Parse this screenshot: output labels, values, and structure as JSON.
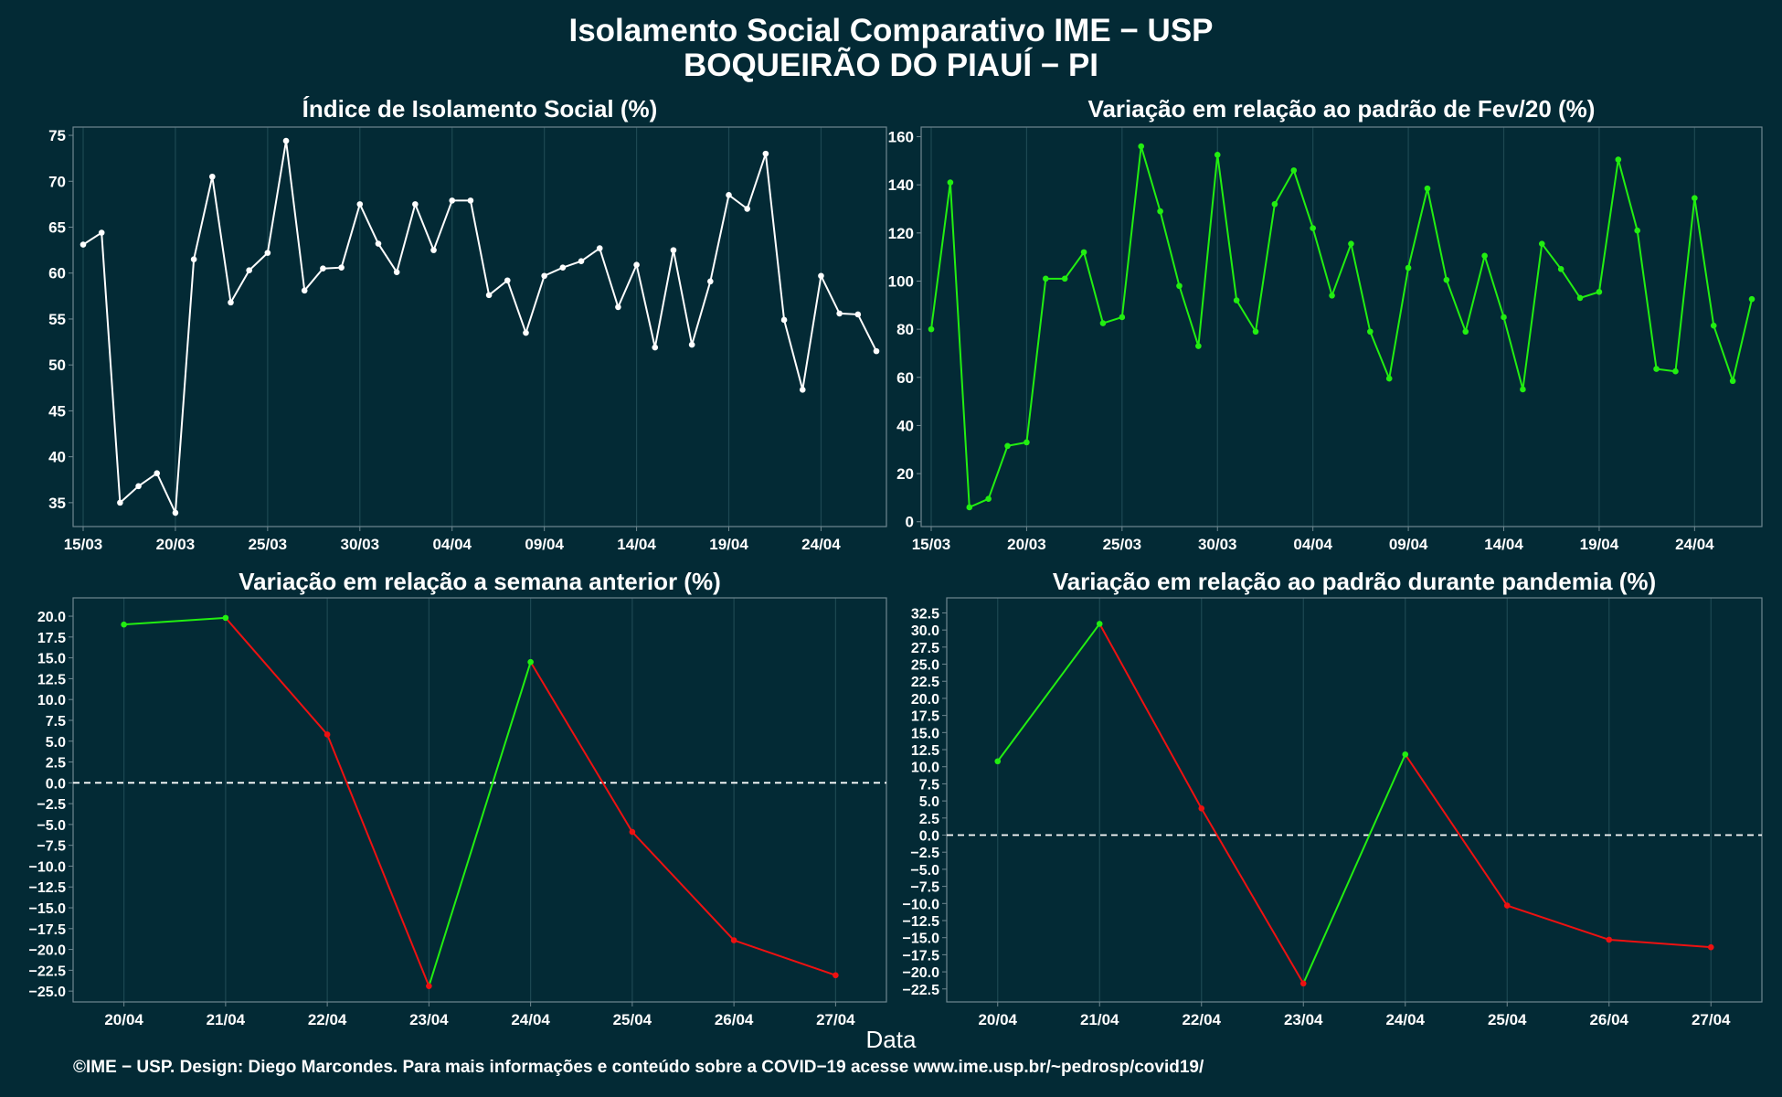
{
  "header": {
    "title": "Isolamento Social Comparativo IME − USP",
    "subtitle": "BOQUEIRÃO DO PIAUÍ − PI"
  },
  "xlabel": "Data",
  "footer": "©IME − USP. Design: Diego Marcondes. Para mais informações e conteúdo sobre a COVID−19 acesse www.ime.usp.br/~pedrosp/covid19/",
  "colors": {
    "background": "#032a35",
    "panel_border": "#6f8790",
    "grid": "#1d4852",
    "white_series": "#ffffff",
    "positive": "#22ee11",
    "negative": "#ee1111"
  },
  "chart_data": [
    {
      "type": "line",
      "title": "Índice de Isolamento Social (%)",
      "x_tick_labels": [
        "15/03",
        "20/03",
        "25/03",
        "30/03",
        "04/04",
        "09/04",
        "14/04",
        "19/04",
        "24/04"
      ],
      "x": [
        "15/03",
        "16/03",
        "17/03",
        "18/03",
        "19/03",
        "20/03",
        "21/03",
        "22/03",
        "23/03",
        "24/03",
        "25/03",
        "26/03",
        "27/03",
        "28/03",
        "29/03",
        "30/03",
        "31/03",
        "01/04",
        "02/04",
        "03/04",
        "04/04",
        "05/04",
        "06/04",
        "07/04",
        "08/04",
        "09/04",
        "10/04",
        "11/04",
        "12/04",
        "13/04",
        "14/04",
        "15/04",
        "16/04",
        "17/04",
        "18/04",
        "19/04",
        "20/04",
        "21/04",
        "22/04",
        "23/04",
        "24/04",
        "25/04",
        "26/04",
        "27/04"
      ],
      "series": [
        {
          "color": "#ffffff",
          "values": [
            63.1,
            64.4,
            35.0,
            36.8,
            38.2,
            33.9,
            61.5,
            70.5,
            56.8,
            60.3,
            62.2,
            74.4,
            58.1,
            60.5,
            60.6,
            67.5,
            63.2,
            60.1,
            67.5,
            62.5,
            67.9,
            67.9,
            57.6,
            59.2,
            53.5,
            59.7,
            60.6,
            61.3,
            62.7,
            56.3,
            60.9,
            51.9,
            62.5,
            52.2,
            59.1,
            68.5,
            67.0,
            73.0,
            54.9,
            47.3,
            59.7,
            55.6,
            55.5,
            51.5
          ]
        }
      ],
      "yticks": [
        35,
        40,
        45,
        50,
        55,
        60,
        65,
        70,
        75
      ],
      "ylim": [
        32.4,
        75.9
      ]
    },
    {
      "type": "line",
      "title": "Variação em relação ao padrão de Fev/20 (%)",
      "x_tick_labels": [
        "15/03",
        "20/03",
        "25/03",
        "30/03",
        "04/04",
        "09/04",
        "14/04",
        "19/04",
        "24/04"
      ],
      "x": [
        "15/03",
        "16/03",
        "17/03",
        "18/03",
        "19/03",
        "20/03",
        "21/03",
        "22/03",
        "23/03",
        "24/03",
        "25/03",
        "26/03",
        "27/03",
        "28/03",
        "29/03",
        "30/03",
        "31/03",
        "01/04",
        "02/04",
        "03/04",
        "04/04",
        "05/04",
        "06/04",
        "07/04",
        "08/04",
        "09/04",
        "10/04",
        "11/04",
        "12/04",
        "13/04",
        "14/04",
        "15/04",
        "16/04",
        "17/04",
        "18/04",
        "19/04",
        "20/04",
        "21/04",
        "22/04",
        "23/04",
        "24/04",
        "25/04",
        "26/04",
        "27/04"
      ],
      "series": [
        {
          "color": "#22ee11",
          "values": [
            80,
            141,
            6,
            9.5,
            31.5,
            33,
            101,
            101,
            112,
            82.5,
            85,
            156,
            129,
            98,
            73,
            152.5,
            92,
            79,
            132,
            146,
            122,
            94,
            115.5,
            79,
            59.5,
            105.5,
            138.5,
            100.5,
            79,
            110.5,
            85,
            55,
            115.5,
            105,
            93,
            95.5,
            150.5,
            121,
            63.5,
            62.5,
            134.5,
            81.5,
            58.5,
            92.5
          ]
        }
      ],
      "yticks": [
        0,
        20,
        40,
        60,
        80,
        100,
        120,
        140,
        160
      ],
      "ylim": [
        -2,
        164
      ]
    },
    {
      "type": "line",
      "title": "Variação em relação a semana anterior (%)",
      "categories": [
        "20/04",
        "21/04",
        "22/04",
        "23/04",
        "24/04",
        "25/04",
        "26/04",
        "27/04"
      ],
      "series": [
        {
          "values": [
            19.0,
            19.8,
            5.8,
            -24.4,
            14.5,
            -5.9,
            -18.9,
            -23.1
          ]
        }
      ],
      "segment_colors": {
        "rising": "#22ee11",
        "falling": "#ee1111"
      },
      "reference_line": 0,
      "yticks": [
        20.0,
        17.5,
        15.0,
        12.5,
        10.0,
        7.5,
        5.0,
        2.5,
        0.0,
        -2.5,
        -5.0,
        -7.5,
        -10.0,
        -12.5,
        -15.0,
        -17.5,
        -20.0,
        -22.5,
        -25.0
      ],
      "ylim": [
        -26.3,
        22.2
      ]
    },
    {
      "type": "line",
      "title": "Variação em relação ao padrão durante pandemia (%)",
      "categories": [
        "20/04",
        "21/04",
        "22/04",
        "23/04",
        "24/04",
        "25/04",
        "26/04",
        "27/04"
      ],
      "series": [
        {
          "values": [
            10.8,
            30.9,
            3.9,
            -21.7,
            11.8,
            -10.3,
            -15.3,
            -16.4
          ]
        }
      ],
      "segment_colors": {
        "rising": "#22ee11",
        "falling": "#ee1111"
      },
      "reference_line": 0,
      "yticks": [
        32.5,
        30.0,
        27.5,
        25.0,
        22.5,
        20.0,
        17.5,
        15.0,
        12.5,
        10.0,
        7.5,
        5.0,
        2.5,
        0.0,
        -2.5,
        -5.0,
        -7.5,
        -10.0,
        -12.5,
        -15.0,
        -17.5,
        -20.0,
        -22.5
      ],
      "ylim": [
        -24.4,
        34.7
      ]
    }
  ]
}
